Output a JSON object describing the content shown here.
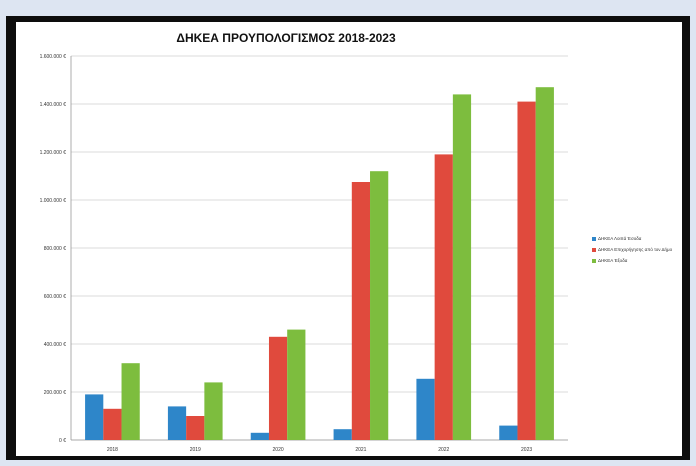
{
  "chart_data": {
    "type": "bar",
    "title": "ΔΗΚΕΑ ΠΡΟΥΠΟΛΟΓΙΣΜΟΣ 2018-2023",
    "categories": [
      "2018",
      "2019",
      "2020",
      "2021",
      "2022",
      "2023"
    ],
    "series": [
      {
        "name": "ΔΗΚΕΑ Λοιπά Έσοδα",
        "color": "#2e86c9",
        "values": [
          190000,
          140000,
          30000,
          45000,
          255000,
          60000
        ]
      },
      {
        "name": "ΔΗΚΕΑ Επιχορήγησης από τον Δήμο",
        "color": "#e04a3d",
        "values": [
          130000,
          100000,
          430000,
          1075000,
          1190000,
          1410000
        ]
      },
      {
        "name": "ΔΗΚΕΑ Έξοδα",
        "color": "#7dbd3e",
        "values": [
          320000,
          240000,
          460000,
          1120000,
          1440000,
          1470000
        ]
      }
    ],
    "y_ticks": [
      "0 €",
      "200.000 €",
      "400.000 €",
      "600.000 €",
      "800.000 €",
      "1.000.000 €",
      "1.200.000 €",
      "1.400.000 €",
      "1.600.000 €"
    ],
    "ylim": [
      0,
      1600000
    ],
    "grid": true,
    "legend": "right"
  }
}
